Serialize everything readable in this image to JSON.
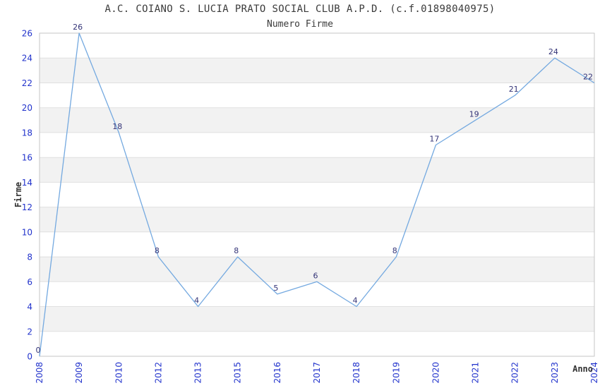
{
  "chart_data": {
    "type": "line",
    "title": "A.C. COIANO S. LUCIA PRATO SOCIAL CLUB A.P.D. (c.f.01898040975)",
    "subtitle": "Numero Firme",
    "xlabel": "Anno",
    "ylabel": "Firme",
    "categories": [
      "2008",
      "2009",
      "2010",
      "2012",
      "2013",
      "2015",
      "2016",
      "2017",
      "2018",
      "2019",
      "2020",
      "2021",
      "2022",
      "2023",
      "2024"
    ],
    "series": [
      {
        "name": "Numero Firme",
        "values": [
          0,
          26,
          18,
          8,
          4,
          8,
          5,
          6,
          4,
          8,
          17,
          19,
          21,
          24,
          22
        ]
      }
    ],
    "ylim": [
      0,
      26
    ],
    "ytick_step": 2,
    "yticks": [
      0,
      2,
      4,
      6,
      8,
      10,
      12,
      14,
      16,
      18,
      20,
      22,
      24,
      26
    ],
    "point_labels_shown": true,
    "legend": "none",
    "grid": "horizontal-lines-with-alternating-bands",
    "xtick_rotation_degrees": -90,
    "markers": "none",
    "colors": {
      "line": "#74a9e0",
      "tick_label": "#2233cc",
      "point_label": "#333377",
      "band": "#f2f2f2",
      "gridline": "#e0e0e0",
      "plot_border": "#c6c6c6",
      "title_text": "#3a3a3a",
      "axis_title_text": "#333333",
      "background": "#ffffff"
    }
  }
}
